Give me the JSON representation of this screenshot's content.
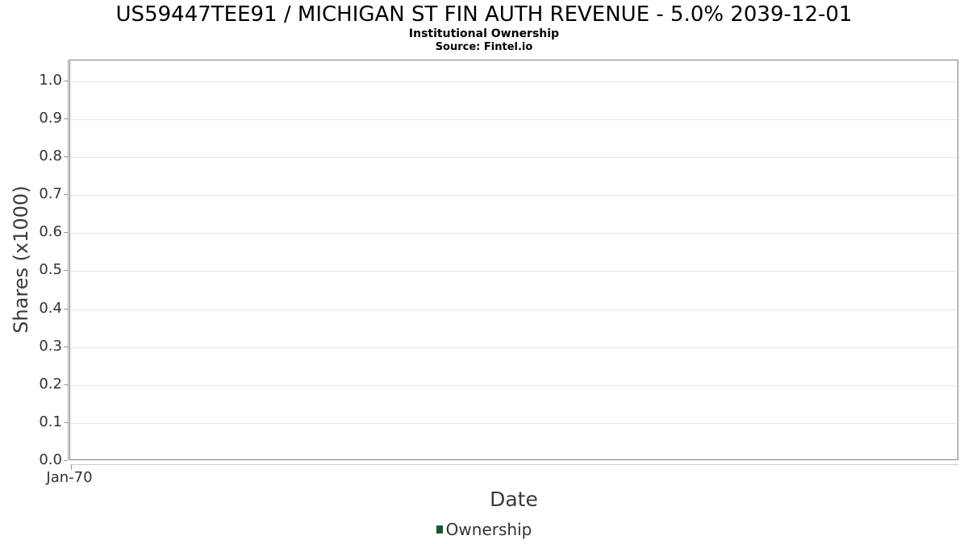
{
  "header": {
    "title": "US59447TEE91 / MICHIGAN ST FIN AUTH REVENUE - 5.0% 2039-12-01",
    "subtitle": "Institutional Ownership",
    "source": "Source: Fintel.io"
  },
  "chart_data": {
    "type": "line",
    "title": "US59447TEE91 / MICHIGAN ST FIN AUTH REVENUE - 5.0% 2039-12-01",
    "subtitle": "Institutional Ownership",
    "source": "Source: Fintel.io",
    "xlabel": "Date",
    "ylabel": "Shares (x1000)",
    "x": [],
    "series": [
      {
        "name": "Ownership",
        "color": "#1c5631",
        "values": []
      }
    ],
    "xticks": [
      "Jan-70"
    ],
    "yticks": [
      "0.0",
      "0.1",
      "0.2",
      "0.3",
      "0.4",
      "0.5",
      "0.6",
      "0.7",
      "0.8",
      "0.9",
      "1.0"
    ],
    "ylim": [
      0,
      1.055
    ],
    "grid": true,
    "legend_position": "bottom",
    "note_empty_chart": "No data points plotted"
  },
  "colors": {
    "plot_border": "#808080",
    "gridline": "#e6e6e6",
    "y_axis_line": "#999999",
    "x_axis_line": "#cccccc",
    "tick_text": "#333333",
    "axis_title_text": "#3a3a3a",
    "title_text": "#000000",
    "legend_marker": "#1c5631"
  }
}
